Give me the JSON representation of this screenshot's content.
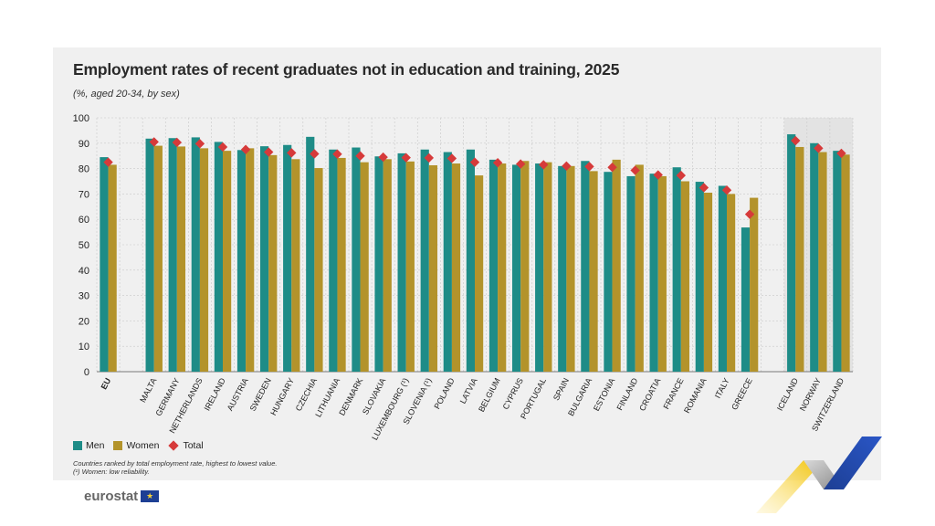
{
  "title": "Employment rates of recent graduates not in education and training, 2025",
  "subtitle": "(%, aged 20-34, by sex)",
  "legend": {
    "men": "Men",
    "women": "Women",
    "total": "Total"
  },
  "notes": [
    "Countries ranked by total employment rate, highest to lowest value.",
    "(¹) Women: low reliability."
  ],
  "logo": {
    "text": "eurostat",
    "flag_glyph": "★"
  },
  "colors": {
    "men": "#1e8c87",
    "women": "#b3932b",
    "total": "#d63a3a",
    "panel": "#f0f0f0",
    "nonEuShade": "#e3e3e3"
  },
  "chart_data": {
    "type": "bar",
    "ylim": [
      0,
      100
    ],
    "yticks": [
      0,
      10,
      20,
      30,
      40,
      50,
      60,
      70,
      80,
      90,
      100
    ],
    "grid": true,
    "categories": [
      "EU",
      "MALTA",
      "GERMANY",
      "NETHERLANDS",
      "IRELAND",
      "AUSTRIA",
      "SWEDEN",
      "HUNGARY",
      "CZECHIA",
      "LITHUANIA",
      "DENMARK",
      "SLOVAKIA",
      "LUXEMBOURG (¹)",
      "SLOVENIA (¹)",
      "POLAND",
      "LATVIA",
      "BELGIUM",
      "CYPRUS",
      "PORTUGAL",
      "SPAIN",
      "BULGARIA",
      "ESTONIA",
      "FINLAND",
      "CROATIA",
      "FRANCE",
      "ROMANIA",
      "ITALY",
      "GREECE",
      "ICELAND",
      "NORWAY",
      "SWITZERLAND"
    ],
    "groups": [
      1,
      27,
      3
    ],
    "series": [
      {
        "name": "Men",
        "type": "bar",
        "values": [
          84.5,
          91.8,
          92.0,
          92.3,
          90.5,
          87.3,
          88.8,
          89.3,
          92.5,
          87.5,
          88.3,
          84.8,
          86.0,
          87.5,
          86.5,
          87.5,
          83.5,
          81.5,
          82.0,
          81.0,
          83.0,
          78.7,
          77.0,
          78.0,
          80.5,
          74.8,
          73.2,
          56.8,
          93.5,
          90.0,
          87.0
        ]
      },
      {
        "name": "Women",
        "type": "bar",
        "values": [
          81.5,
          89.0,
          88.7,
          88.0,
          87.0,
          88.0,
          85.3,
          83.7,
          80.2,
          84.2,
          82.5,
          83.7,
          82.8,
          81.3,
          82.0,
          77.3,
          82.0,
          83.0,
          82.5,
          81.0,
          79.0,
          83.5,
          81.5,
          77.0,
          75.0,
          70.5,
          70.0,
          68.5,
          88.5,
          86.5,
          85.5
        ]
      },
      {
        "name": "Total",
        "type": "marker",
        "values": [
          82.5,
          90.5,
          90.3,
          89.8,
          88.5,
          87.5,
          86.5,
          86.2,
          85.8,
          85.7,
          85.0,
          84.5,
          84.3,
          84.2,
          84.0,
          82.5,
          82.3,
          81.8,
          81.5,
          81.0,
          80.8,
          80.5,
          79.3,
          77.5,
          77.3,
          72.5,
          71.5,
          62.0,
          91.0,
          88.0,
          86.0
        ]
      }
    ]
  }
}
